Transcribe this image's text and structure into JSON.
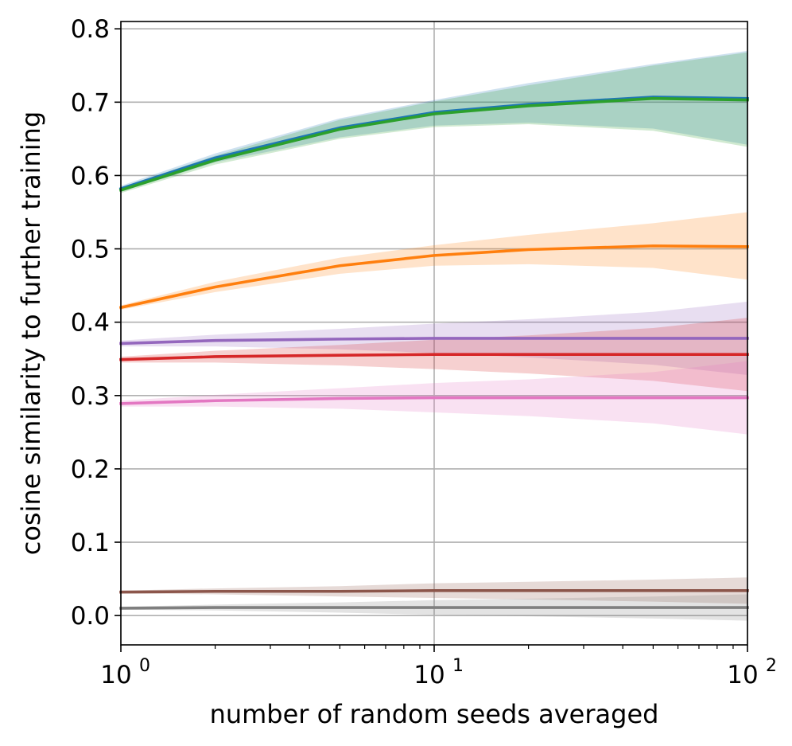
{
  "chart_data": {
    "type": "line",
    "xscale": "log",
    "xlim": [
      1,
      100
    ],
    "ylim": [
      -0.04,
      0.81
    ],
    "xlabel": "number of random seeds averaged",
    "ylabel": "cosine similarity to further training",
    "grid": true,
    "x_tick_labels": [
      {
        "value": 1,
        "base": "10",
        "exp": "0"
      },
      {
        "value": 10,
        "base": "10",
        "exp": "1"
      },
      {
        "value": 100,
        "base": "10",
        "exp": "2"
      }
    ],
    "y_ticks": [
      0.0,
      0.1,
      0.2,
      0.3,
      0.4,
      0.5,
      0.6,
      0.7,
      0.8
    ],
    "y_tick_labels": [
      "0.0",
      "0.1",
      "0.2",
      "0.3",
      "0.4",
      "0.5",
      "0.6",
      "0.7",
      "0.8"
    ],
    "x": [
      1,
      2,
      5,
      10,
      20,
      50,
      100
    ],
    "series": [
      {
        "color": "#1f77b4",
        "values": [
          0.582,
          0.624,
          0.665,
          0.686,
          0.697,
          0.707,
          0.705
        ],
        "lower": [
          0.578,
          0.618,
          0.652,
          0.668,
          0.672,
          0.664,
          0.642
        ],
        "upper": [
          0.586,
          0.63,
          0.678,
          0.703,
          0.726,
          0.752,
          0.77
        ]
      },
      {
        "color": "#2ca02c",
        "values": [
          0.58,
          0.621,
          0.663,
          0.684,
          0.695,
          0.705,
          0.703
        ],
        "lower": [
          0.576,
          0.615,
          0.65,
          0.666,
          0.67,
          0.661,
          0.639
        ],
        "upper": [
          0.584,
          0.627,
          0.676,
          0.701,
          0.723,
          0.75,
          0.768
        ]
      },
      {
        "color": "#ff7f0e",
        "values": [
          0.42,
          0.448,
          0.477,
          0.491,
          0.499,
          0.504,
          0.503
        ],
        "lower": [
          0.417,
          0.441,
          0.466,
          0.477,
          0.479,
          0.474,
          0.458
        ],
        "upper": [
          0.423,
          0.455,
          0.488,
          0.505,
          0.519,
          0.535,
          0.55
        ]
      },
      {
        "color": "#9467bd",
        "values": [
          0.371,
          0.375,
          0.377,
          0.378,
          0.378,
          0.378,
          0.378
        ],
        "lower": [
          0.367,
          0.367,
          0.363,
          0.358,
          0.352,
          0.342,
          0.328
        ],
        "upper": [
          0.375,
          0.383,
          0.391,
          0.398,
          0.404,
          0.414,
          0.428
        ]
      },
      {
        "color": "#d62728",
        "values": [
          0.349,
          0.353,
          0.355,
          0.356,
          0.356,
          0.356,
          0.356
        ],
        "lower": [
          0.345,
          0.345,
          0.341,
          0.336,
          0.33,
          0.32,
          0.306
        ],
        "upper": [
          0.353,
          0.361,
          0.369,
          0.376,
          0.382,
          0.392,
          0.406
        ]
      },
      {
        "color": "#e377c2",
        "values": [
          0.289,
          0.293,
          0.296,
          0.297,
          0.297,
          0.297,
          0.297
        ],
        "lower": [
          0.285,
          0.285,
          0.282,
          0.277,
          0.272,
          0.262,
          0.247
        ],
        "upper": [
          0.293,
          0.301,
          0.31,
          0.317,
          0.322,
          0.332,
          0.347
        ]
      },
      {
        "color": "#8c564b",
        "values": [
          0.032,
          0.033,
          0.033,
          0.034,
          0.034,
          0.034,
          0.034
        ],
        "lower": [
          0.03,
          0.029,
          0.026,
          0.024,
          0.022,
          0.019,
          0.016
        ],
        "upper": [
          0.034,
          0.037,
          0.04,
          0.044,
          0.046,
          0.049,
          0.052
        ]
      },
      {
        "color": "#7f7f7f",
        "values": [
          0.01,
          0.011,
          0.011,
          0.011,
          0.011,
          0.011,
          0.011
        ],
        "lower": [
          0.008,
          0.007,
          0.004,
          0.001,
          -0.001,
          -0.004,
          -0.007
        ],
        "upper": [
          0.012,
          0.015,
          0.018,
          0.021,
          0.023,
          0.026,
          0.029
        ]
      }
    ]
  }
}
